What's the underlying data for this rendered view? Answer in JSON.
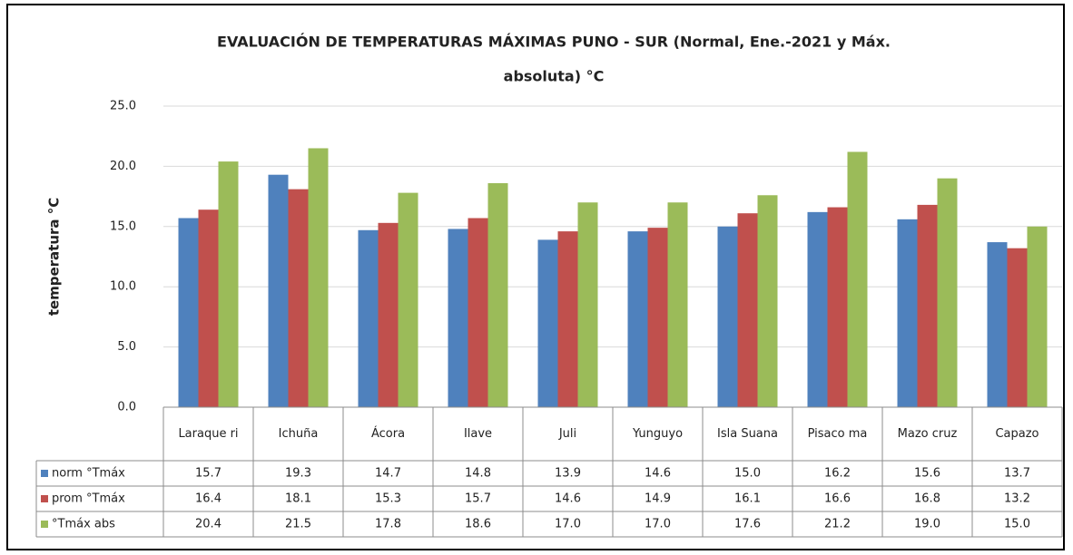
{
  "chart_data": {
    "type": "bar",
    "title_lines": [
      "EVALUACIÓN DE TEMPERATURAS MÁXIMAS PUNO - SUR  (Normal, Ene.-2021 y Máx.",
      "absoluta) °C"
    ],
    "y_label": "temperatura °C",
    "categories": [
      "Laraque ri",
      "Ichuña",
      "Ácora",
      "Ilave",
      "Juli",
      "Yunguyo",
      "Isla Suana",
      "Pisaco ma",
      "Mazo cruz",
      "Capazo"
    ],
    "series": [
      {
        "name": "norm °Tmáx",
        "color": "#4f81bd",
        "values": [
          15.7,
          19.3,
          14.7,
          14.8,
          13.9,
          14.6,
          15.0,
          16.2,
          15.6,
          13.7
        ],
        "value_labels": [
          "15.7",
          "19.3",
          "14.7",
          "14.8",
          "13.9",
          "14.6",
          "15.0",
          "16.2",
          "15.6",
          "13.7"
        ]
      },
      {
        "name": "prom °Tmáx",
        "color": "#c0504d",
        "values": [
          16.4,
          18.1,
          15.3,
          15.7,
          14.6,
          14.9,
          16.1,
          16.6,
          16.8,
          13.2
        ],
        "value_labels": [
          "16.4",
          "18.1",
          "15.3",
          "15.7",
          "14.6",
          "14.9",
          "16.1",
          "16.6",
          "16.8",
          "13.2"
        ]
      },
      {
        "name": "°Tmáx abs",
        "color": "#9bbb59",
        "values": [
          20.4,
          21.5,
          17.8,
          18.6,
          17.0,
          17.0,
          17.6,
          21.2,
          19.0,
          15.0
        ],
        "value_labels": [
          "20.4",
          "21.5",
          "17.8",
          "18.6",
          "17.0",
          "17.0",
          "17.6",
          "21.2",
          "19.0",
          "15.0"
        ]
      }
    ],
    "ylim": [
      0,
      25
    ],
    "yticks": [
      {
        "value": 0,
        "label": "0.0"
      },
      {
        "value": 5,
        "label": "5.0"
      },
      {
        "value": 10,
        "label": "10.0"
      },
      {
        "value": 15,
        "label": "15.0"
      },
      {
        "value": 20,
        "label": "20.0"
      },
      {
        "value": 25,
        "label": "25.0"
      }
    ],
    "grid": true
  }
}
